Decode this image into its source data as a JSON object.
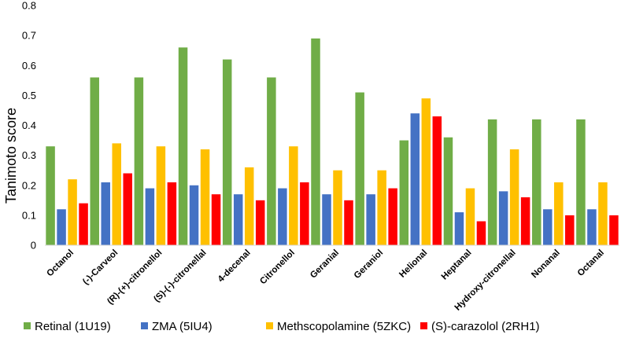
{
  "chart_data": {
    "type": "bar",
    "title": "",
    "xlabel": "",
    "ylabel": "Tanimoto score",
    "ylim": [
      0,
      0.8
    ],
    "yticks": [
      "0",
      "0.1",
      "0.2",
      "0.3",
      "0.4",
      "0.5",
      "0.6",
      "0.7",
      "0.8"
    ],
    "grid": false,
    "legend_position": "bottom",
    "categories": [
      "Octanol",
      "(-)-Carveol",
      "(R)-(+)-citronellol",
      "(S)-(-)-citronellal",
      "4-decenal",
      "Citronellol",
      "Geranial",
      "Geraniol",
      "Helional",
      "Heptanal",
      "Hydroxy-citronellal",
      "Nonanal",
      "Octanal"
    ],
    "series": [
      {
        "name": "Retinal (1U19)",
        "color": "#70ad47",
        "values": [
          0.33,
          0.56,
          0.56,
          0.66,
          0.62,
          0.56,
          0.69,
          0.51,
          0.35,
          0.36,
          0.42,
          0.42,
          0.42
        ]
      },
      {
        "name": "ZMA (5IU4)",
        "color": "#4472c4",
        "values": [
          0.12,
          0.21,
          0.19,
          0.2,
          0.17,
          0.19,
          0.17,
          0.17,
          0.44,
          0.11,
          0.18,
          0.12,
          0.12
        ]
      },
      {
        "name": "Methscopolamine (5ZKC)",
        "color": "#ffc000",
        "values": [
          0.22,
          0.34,
          0.33,
          0.32,
          0.26,
          0.33,
          0.25,
          0.25,
          0.49,
          0.19,
          0.32,
          0.21,
          0.21
        ]
      },
      {
        "name": "(S)-carazolol (2RH1)",
        "color": "#ff0000",
        "values": [
          0.14,
          0.24,
          0.21,
          0.17,
          0.15,
          0.21,
          0.15,
          0.19,
          0.43,
          0.08,
          0.16,
          0.1,
          0.1
        ]
      }
    ]
  }
}
